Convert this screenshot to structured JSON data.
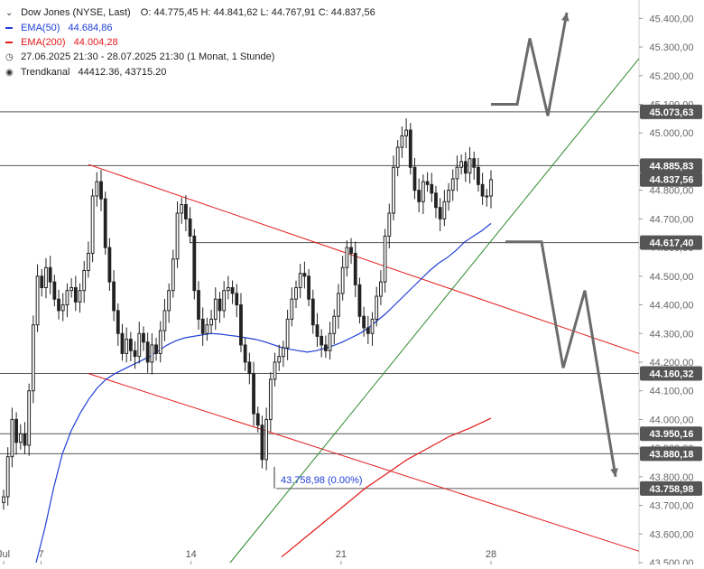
{
  "legend": {
    "instrument": "Dow Jones (NYSE, Last)",
    "ohlc": "O: 44.775,45   H: 44.841,62   L: 44.767,91   C: 44.837,56",
    "ema50_label": "EMA(50)",
    "ema50_value": "44.684,86",
    "ema200_label": "EMA(200)",
    "ema200_value": "44.004,28",
    "range": "27.06.2025 21:30 - 28.07.2025 21:30   (1 Monat, 1 Stunde)",
    "trend_label": "Trendkanal",
    "trend_value": "44412.36, 43715.20"
  },
  "colors": {
    "bull": "#222222",
    "bear": "#222222",
    "ema50": "#1f3fd6",
    "ema200": "#e31a1a",
    "channel": "#e31a1a",
    "trendline": "#2e8b2e",
    "level": "#555555",
    "badge": "#555555",
    "arrow": "#6b6b6b",
    "low_label": "#1f3fd6"
  },
  "chart_data": {
    "type": "candlestick",
    "instrument": "Dow Jones",
    "ylim": [
      43500,
      45420
    ],
    "x_ticks": [
      {
        "label": "Jul",
        "x": 0
      },
      {
        "label": "7",
        "x": 6
      },
      {
        "label": "14",
        "x": 30
      },
      {
        "label": "21",
        "x": 54
      },
      {
        "label": "28",
        "x": 78
      }
    ],
    "y_ticks": [
      "45.400,00",
      "45.300,00",
      "45.200,00",
      "45.100,00",
      "45.000,00",
      "44.900,00",
      "44.800,00",
      "44.700,00",
      "44.600,00",
      "44.500,00",
      "44.400,00",
      "44.300,00",
      "44.200,00",
      "44.100,00",
      "44.000,00",
      "43.900,00",
      "43.800,00",
      "43.700,00",
      "43.600,00",
      "43.500,00"
    ],
    "y_tick_values": [
      45400,
      45300,
      45200,
      45100,
      45000,
      44900,
      44800,
      44700,
      44600,
      44500,
      44400,
      44300,
      44200,
      44100,
      44000,
      43900,
      43800,
      43700,
      43600,
      43500
    ],
    "closes": [
      43730,
      43870,
      44000,
      43920,
      43950,
      43910,
      44100,
      44330,
      44500,
      44460,
      44530,
      44480,
      44420,
      44380,
      44400,
      44450,
      44460,
      44410,
      44450,
      44520,
      44580,
      44780,
      44830,
      44770,
      44600,
      44480,
      44380,
      44300,
      44230,
      44280,
      44240,
      44220,
      44300,
      44270,
      44200,
      44260,
      44230,
      44310,
      44380,
      44450,
      44560,
      44720,
      44750,
      44700,
      44640,
      44450,
      44350,
      44300,
      44330,
      44350,
      44420,
      44380,
      44450,
      44460,
      44440,
      44400,
      44260,
      44200,
      44160,
      44020,
      43980,
      43860,
      44000,
      44140,
      44200,
      44220,
      44250,
      44350,
      44420,
      44460,
      44510,
      44500,
      44420,
      44330,
      44290,
      44260,
      44240,
      44300,
      44360,
      44440,
      44530,
      44600,
      44580,
      44470,
      44360,
      44320,
      44300,
      44350,
      44430,
      44480,
      44640,
      44720,
      44880,
      44950,
      44990,
      45010,
      44880,
      44800,
      44760,
      44830,
      44820,
      44790,
      44740,
      44700,
      44760,
      44800,
      44840,
      44880,
      44900,
      44860,
      44910,
      44880,
      44820,
      44780,
      44780,
      44837
    ],
    "ema50": [
      43500,
      43620,
      43760,
      43880,
      43960,
      44020,
      44070,
      44110,
      44140,
      44160,
      44175,
      44190,
      44205,
      44220,
      44240,
      44260,
      44275,
      44285,
      44290,
      44295,
      44300,
      44298,
      44294,
      44290,
      44285,
      44280,
      44272,
      44262,
      44252,
      44245,
      44240,
      44235,
      44240,
      44248,
      44258,
      44270,
      44285,
      44300,
      44320,
      44345,
      44370,
      44400,
      44430,
      44460,
      44490,
      44520,
      44545,
      44565,
      44590,
      44620,
      44640,
      44660,
      44684
    ],
    "ema200": [
      43520,
      43580,
      43640,
      43700,
      43760,
      43810,
      43860,
      43900,
      43940,
      43970,
      44004
    ],
    "channel_upper": [
      [
        44890,
        0
      ],
      [
        44230,
        1
      ]
    ],
    "channel_lower": [
      [
        44160,
        0
      ],
      [
        43540,
        1
      ]
    ],
    "trendline": [
      [
        43500,
        0
      ],
      [
        45370,
        1
      ]
    ],
    "levels": [
      "45.073,63",
      "44.885,83",
      "44.837,56",
      "44.617,40",
      "44.160,32",
      "43.950,16",
      "43.880,18",
      "43.758,98"
    ],
    "level_values": [
      45073.63,
      44885.83,
      44837.56,
      44617.4,
      44160.32,
      43950.16,
      43880.18,
      43758.98
    ],
    "low_annotation": "43.758,98 (0.00%)",
    "low_value": 43758.98,
    "scenario_up": [
      45100,
      45100,
      45330,
      45060,
      45420
    ],
    "scenario_down": [
      44620,
      44620,
      44180,
      44450,
      43800
    ]
  }
}
